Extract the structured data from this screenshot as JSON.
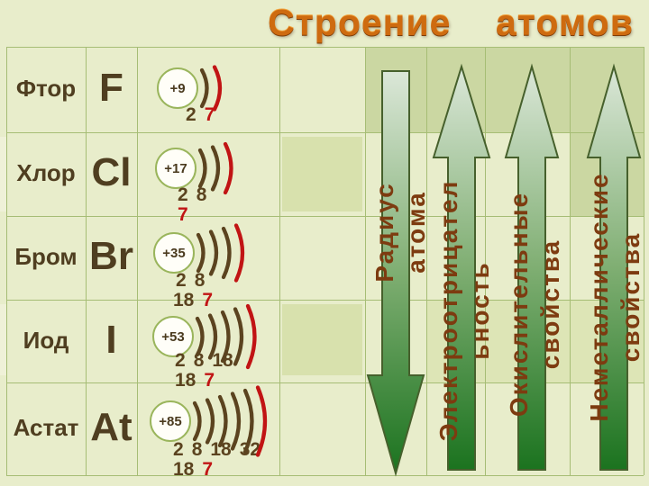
{
  "title": "Строение    атомов",
  "rows": [
    {
      "name": "Фтор",
      "symbol": "F",
      "charge": "+9",
      "shells": 2,
      "line1": [
        "2",
        "7"
      ],
      "line2": []
    },
    {
      "name": "Хлор",
      "symbol": "Cl",
      "charge": "+17",
      "shells": 3,
      "line1": [
        "2",
        "8"
      ],
      "line2": [
        "7"
      ]
    },
    {
      "name": "Бром",
      "symbol": "Br",
      "charge": "+35",
      "shells": 4,
      "line1": [
        "2",
        "8"
      ],
      "line2": [
        "18",
        "7"
      ]
    },
    {
      "name": "Иод",
      "symbol": "I",
      "charge": "+53",
      "shells": 5,
      "line1": [
        "2",
        "8",
        "18"
      ],
      "line2": [
        "18",
        "7"
      ]
    },
    {
      "name": "Астат",
      "symbol": "At",
      "charge": "+85",
      "shells": 6,
      "line1": [
        "2",
        "8",
        "18",
        "32"
      ],
      "line2": [
        "18",
        "7"
      ]
    }
  ],
  "arrows": [
    {
      "direction": "down",
      "label_lines": [
        "Радиус",
        "атома"
      ]
    },
    {
      "direction": "up",
      "label_lines": [
        "Электроотрицател",
        "ьность"
      ]
    },
    {
      "direction": "up",
      "label_lines": [
        "Окислительные",
        "свойства"
      ]
    },
    {
      "direction": "up",
      "label_lines": [
        "Неметаллические",
        "свойства"
      ]
    }
  ],
  "colors": {
    "title_orange": "#ce6b10",
    "shell_brown": "#5b431f",
    "shell_red": "#c11414",
    "label_brown": "#7d3b10",
    "arrow_green_light": "#dbe7d8",
    "arrow_green_mid": "#7fae72",
    "arrow_green_dark": "#1b731f",
    "arrow_outline": "#46602c",
    "cell_light": "#e8edcb",
    "cell_medium": "#cbd7a2",
    "cell_subtle": "#dde5b6",
    "cell_inset": "#d8e1ad",
    "grid_line": "#a6bd75",
    "nucleus_ring": "#9ab55c"
  }
}
